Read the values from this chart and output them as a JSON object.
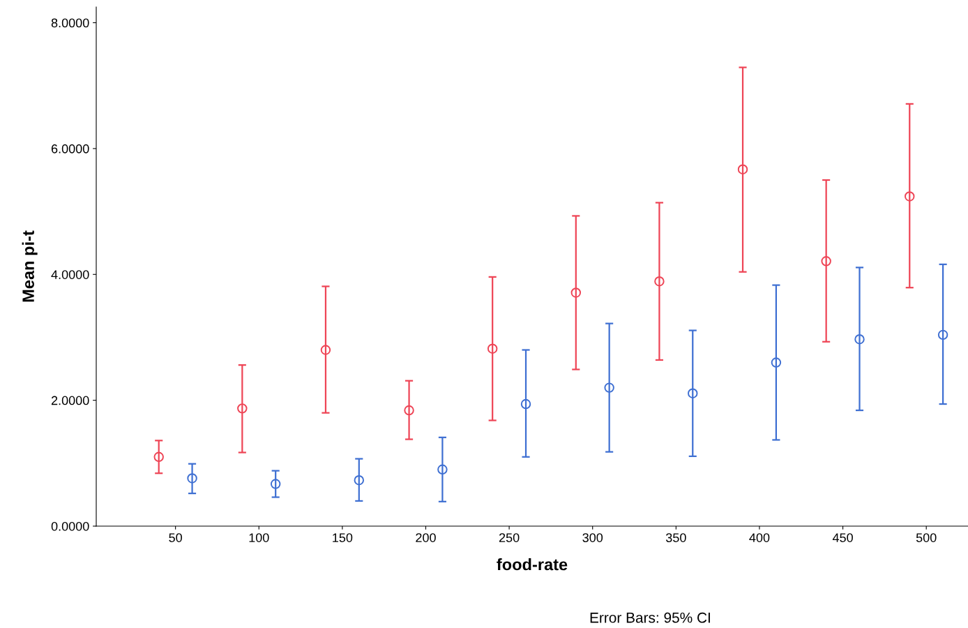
{
  "chart_data": {
    "type": "scatter",
    "xlabel": "food-rate",
    "ylabel": "Mean pi-t",
    "categories": [
      "50",
      "100",
      "150",
      "200",
      "250",
      "300",
      "350",
      "400",
      "450",
      "500"
    ],
    "series": [
      {
        "color": "#ee4455",
        "values": [
          1.1,
          1.87,
          2.8,
          1.84,
          2.82,
          3.71,
          3.89,
          5.67,
          4.21,
          5.24
        ],
        "errors": [
          [
            0.84,
            1.36
          ],
          [
            1.17,
            2.56
          ],
          [
            1.8,
            3.81
          ],
          [
            1.38,
            2.31
          ],
          [
            1.68,
            3.96
          ],
          [
            2.49,
            4.93
          ],
          [
            2.64,
            5.14
          ],
          [
            4.04,
            7.29
          ],
          [
            2.93,
            5.5
          ],
          [
            3.79,
            6.71
          ]
        ]
      },
      {
        "color": "#3e6fd2",
        "values": [
          0.76,
          0.67,
          0.73,
          0.9,
          1.94,
          2.2,
          2.11,
          2.6,
          2.97,
          3.04
        ],
        "errors": [
          [
            0.52,
            0.99
          ],
          [
            0.46,
            0.88
          ],
          [
            0.4,
            1.07
          ],
          [
            0.39,
            1.41
          ],
          [
            1.1,
            2.8
          ],
          [
            1.18,
            3.22
          ],
          [
            1.11,
            3.11
          ],
          [
            1.37,
            3.83
          ],
          [
            1.84,
            4.11
          ],
          [
            1.94,
            4.16
          ]
        ]
      }
    ],
    "ylim": [
      0,
      8.25
    ],
    "yticks": [
      {
        "value": 0,
        "label": "0.0000"
      },
      {
        "value": 2,
        "label": "2.0000"
      },
      {
        "value": 4,
        "label": "4.0000"
      },
      {
        "value": 6,
        "label": "6.0000"
      },
      {
        "value": 8,
        "label": "8.0000"
      }
    ],
    "marker": "circle",
    "grid": false,
    "legend": false,
    "annotations": [
      "Error Bars: 95% CI"
    ]
  }
}
